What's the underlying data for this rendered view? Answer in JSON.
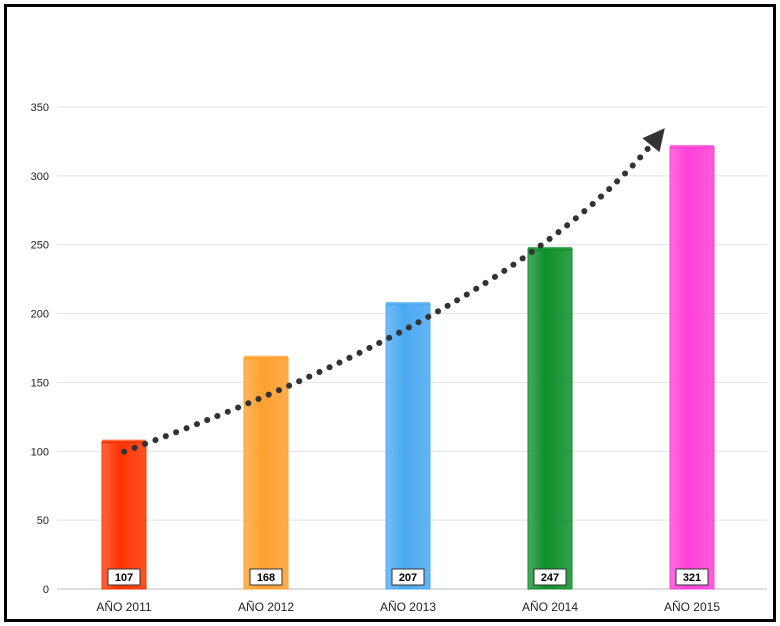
{
  "chart_data": {
    "type": "bar",
    "categories": [
      "AÑO 2011",
      "AÑO 2012",
      "AÑO 2013",
      "AÑO 2014",
      "AÑO 2015"
    ],
    "values": [
      107,
      168,
      207,
      247,
      321
    ],
    "value_labels": [
      "107",
      "168",
      "207",
      "247",
      "321"
    ],
    "ylim": [
      0,
      350
    ],
    "yticks": [
      0,
      50,
      100,
      150,
      200,
      250,
      300,
      350
    ],
    "ytick_labels": [
      "0",
      "50",
      "100",
      "150",
      "200",
      "250",
      "300",
      "350"
    ],
    "grid": true,
    "colors": [
      "#ff3300",
      "#ff9f2e",
      "#4aa8f2",
      "#0e8f2a",
      "#ff3fd6"
    ],
    "trend_arrow": "dotted curved arrow rising from the first bar to the last bar"
  }
}
